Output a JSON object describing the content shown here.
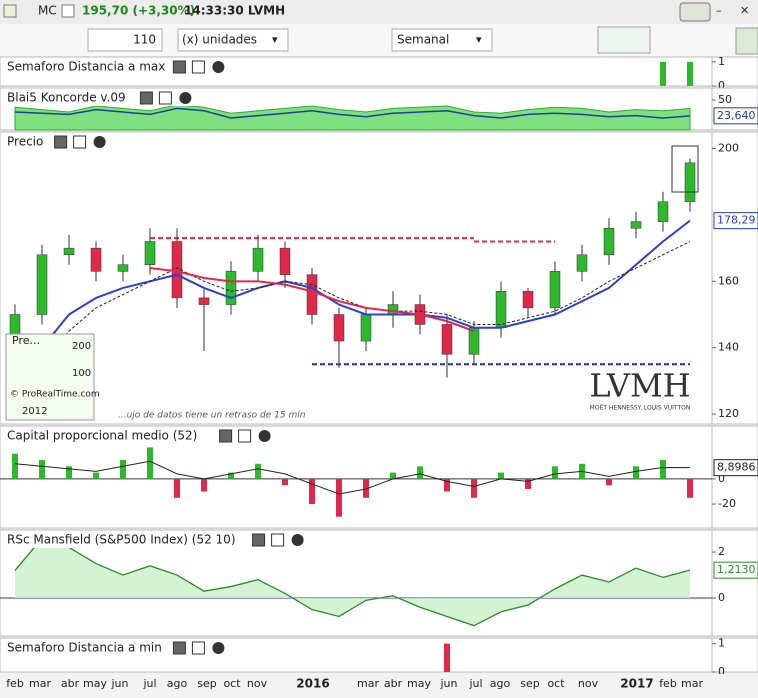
{
  "toolbar": {
    "symbol": "MC",
    "quote": "195,70 (+3,30%)",
    "time": "14:33:30 LVMH",
    "quantity": "110",
    "units": "(x) unidades",
    "period": "Semanal"
  },
  "time_axis": {
    "labels": [
      "feb",
      "mar",
      "abr",
      "may",
      "jun",
      "jul",
      "ago",
      "sep",
      "oct",
      "nov",
      "2016",
      "mar",
      "abr",
      "may",
      "jun",
      "jul",
      "ago",
      "sep",
      "oct",
      "nov",
      "2017",
      "feb",
      "mar"
    ]
  },
  "inset": {
    "title": "Pre...",
    "ticks": [
      200,
      100
    ],
    "year": "2012",
    "credit": "© ProRealTime.com"
  },
  "notice": "...ujo de datos tiene un retraso de 15 min",
  "logo": {
    "name": "LVMH",
    "subtitle": "MOËT HENNESSY. LOUIS VUITTON"
  },
  "chart_data": [
    {
      "type": "bar",
      "title": "Semaforo Distancia a max",
      "color": "#2db82d",
      "values": [
        0,
        0,
        0,
        0,
        0,
        0,
        0,
        0,
        0,
        0,
        0,
        0,
        0,
        0,
        0,
        0,
        0,
        0,
        0,
        0,
        0,
        0,
        0,
        0,
        1,
        1
      ],
      "ylim": [
        0,
        1.2
      ],
      "yticks": [
        0,
        1
      ]
    },
    {
      "type": "area",
      "title": "Blai5 Koncorde v.09",
      "ylim": [
        0,
        70
      ],
      "yticks": [
        50
      ],
      "series": [
        {
          "color": "#7ee07e",
          "values": [
            38,
            34,
            30,
            40,
            36,
            32,
            42,
            38,
            28,
            32,
            36,
            40,
            34,
            30,
            36,
            38,
            40,
            30,
            28,
            34,
            38,
            36,
            30,
            34,
            32,
            36
          ]
        },
        {
          "color": "#1f3f9f",
          "values": [
            30,
            28,
            26,
            34,
            30,
            26,
            36,
            32,
            20,
            24,
            28,
            32,
            26,
            22,
            28,
            30,
            32,
            24,
            20,
            26,
            28,
            26,
            22,
            24,
            20,
            23.64
          ],
          "value_labels": [
            null,
            null,
            null,
            null,
            null,
            null,
            null,
            null,
            null,
            null,
            null,
            null,
            null,
            null,
            null,
            null,
            null,
            null,
            null,
            null,
            null,
            null,
            null,
            null,
            null,
            "23,640"
          ]
        }
      ]
    },
    {
      "type": "candlestick",
      "title": "Precio",
      "ylim": [
        117,
        205
      ],
      "yticks": [
        120,
        140,
        160,
        200
      ],
      "open": [
        143,
        150,
        168,
        170,
        163,
        165,
        172,
        155,
        153,
        163,
        170,
        162,
        150,
        142,
        150,
        153,
        147,
        138,
        146,
        157,
        152,
        163,
        168,
        176,
        178,
        184
      ],
      "close": [
        150,
        168,
        170,
        163,
        165,
        172,
        155,
        153,
        163,
        170,
        162,
        150,
        142,
        150,
        153,
        147,
        138,
        146,
        157,
        152,
        163,
        168,
        176,
        178,
        184,
        195.7
      ],
      "high": [
        153,
        171,
        174,
        172,
        168,
        176,
        176,
        158,
        166,
        174,
        172,
        164,
        152,
        152,
        157,
        156,
        150,
        148,
        160,
        158,
        166,
        171,
        179,
        181,
        187,
        197
      ],
      "low": [
        139,
        147,
        165,
        160,
        160,
        162,
        152,
        139,
        150,
        160,
        158,
        147,
        134,
        139,
        146,
        144,
        131,
        135,
        143,
        149,
        150,
        160,
        165,
        173,
        175,
        181
      ],
      "series": [
        {
          "color": "#2a3fd6",
          "values": [
            130,
            140,
            150,
            155,
            158,
            160,
            162,
            158,
            155,
            158,
            160,
            158,
            153,
            150,
            150,
            150,
            149,
            146,
            146,
            148,
            150,
            154,
            158,
            165,
            172,
            178.29
          ],
          "value_labels": [
            null,
            null,
            null,
            null,
            null,
            null,
            null,
            null,
            null,
            null,
            null,
            null,
            null,
            null,
            null,
            null,
            null,
            null,
            null,
            null,
            null,
            null,
            null,
            null,
            null,
            "178,29"
          ]
        },
        {
          "color": "#222222",
          "dashed": true,
          "values": [
            125,
            135,
            145,
            152,
            156,
            160,
            164,
            160,
            157,
            158,
            160,
            159,
            155,
            152,
            151,
            151,
            150,
            147,
            147,
            149,
            151,
            155,
            160,
            164,
            168,
            172
          ]
        },
        {
          "color": "#e0284a",
          "values": [
            null,
            null,
            null,
            null,
            null,
            164,
            163,
            161,
            160,
            160,
            159,
            157,
            154,
            152,
            151,
            150,
            148,
            145,
            null,
            null,
            null,
            null,
            null,
            null,
            null,
            null
          ]
        }
      ],
      "levels": [
        {
          "color": "#e0284a",
          "value": 173,
          "from": 5,
          "to": 17
        },
        {
          "color": "#e0284a",
          "value": 172,
          "from": 17,
          "to": 20
        },
        {
          "color": "#2b2bd6",
          "value": 135,
          "from": 11,
          "to": 25
        }
      ]
    },
    {
      "type": "bar",
      "title": "Capital proporcional medio (52)",
      "color": "#2db82d",
      "negative_color": "#e0284a",
      "values": [
        20,
        15,
        10,
        5,
        15,
        25,
        -15,
        -10,
        5,
        12,
        -5,
        -20,
        -30,
        -15,
        5,
        10,
        -10,
        -15,
        5,
        -8,
        10,
        12,
        -5,
        10,
        15,
        -15
      ],
      "ylim": [
        -39,
        42
      ],
      "yticks": [
        -20,
        0
      ],
      "series": [
        {
          "color": "#222222",
          "values": [
            12,
            10,
            8,
            6,
            10,
            14,
            4,
            0,
            4,
            8,
            4,
            -4,
            -12,
            -8,
            0,
            4,
            -2,
            -6,
            0,
            -2,
            4,
            6,
            2,
            6,
            9,
            8.8986
          ],
          "value_labels": [
            null,
            null,
            null,
            null,
            null,
            null,
            null,
            null,
            null,
            null,
            null,
            null,
            null,
            null,
            null,
            null,
            null,
            null,
            null,
            null,
            null,
            null,
            null,
            null,
            null,
            "8,8986"
          ]
        }
      ]
    },
    {
      "type": "line",
      "title": "RSc Mansfield (S&P500 Index) (52 10)",
      "ylim": [
        -1.65,
        2.96
      ],
      "yticks": [
        0,
        2
      ],
      "series": [
        {
          "color": "#2a8a2a",
          "values": [
            1.2,
            2.6,
            2.2,
            1.5,
            1.0,
            1.4,
            1.0,
            0.3,
            0.5,
            0.8,
            0.2,
            -0.5,
            -0.8,
            -0.1,
            0.1,
            -0.4,
            -0.8,
            -1.2,
            -0.6,
            -0.3,
            0.4,
            1.0,
            0.7,
            1.3,
            0.9,
            1.213
          ],
          "value_labels": [
            null,
            null,
            null,
            null,
            null,
            null,
            null,
            null,
            null,
            null,
            null,
            null,
            null,
            null,
            null,
            null,
            null,
            null,
            null,
            null,
            null,
            null,
            null,
            null,
            null,
            "1,2130"
          ]
        }
      ]
    },
    {
      "type": "bar",
      "title": "Semaforo Distancia a min",
      "color": "#e0284a",
      "values": [
        0,
        0,
        0,
        0,
        0,
        0,
        0,
        0,
        0,
        0,
        0,
        0,
        0,
        0,
        0,
        0,
        1,
        0,
        0,
        0,
        0,
        0,
        0,
        0,
        0,
        0
      ],
      "ylim": [
        0,
        1.2
      ],
      "yticks": [
        0,
        1
      ]
    }
  ]
}
